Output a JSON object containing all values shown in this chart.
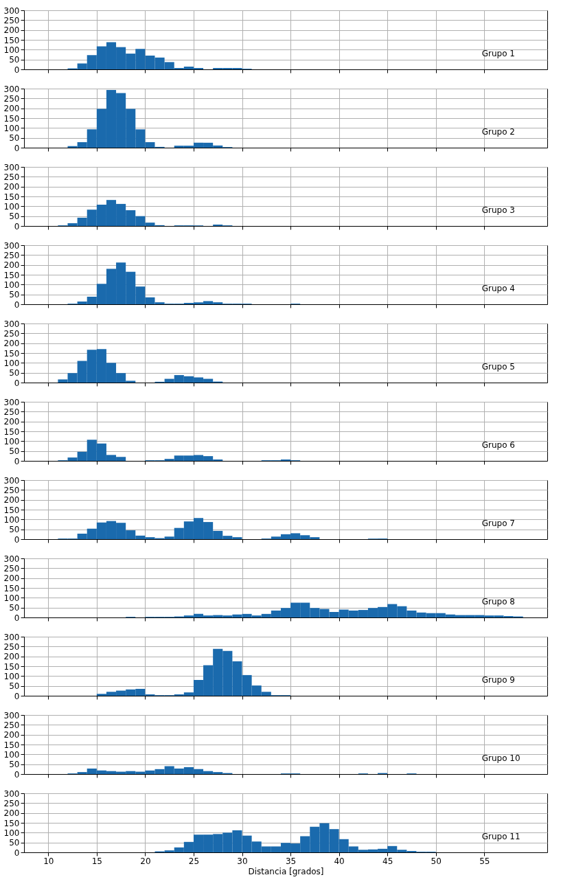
{
  "chart_data": [
    {
      "type": "histogram",
      "bins": [
        12,
        13,
        14,
        15,
        16,
        17,
        18,
        19,
        20,
        21,
        22,
        23,
        24,
        25,
        26,
        27,
        28,
        29,
        30,
        31
      ],
      "values": [
        5,
        30,
        72,
        117,
        138,
        113,
        80,
        104,
        70,
        60,
        37,
        7,
        14,
        7,
        0,
        7,
        7,
        7,
        3
      ],
      "color": "#1a6aad",
      "xlim": [
        7.5,
        61.5
      ],
      "xticks": [
        10,
        15,
        20,
        25,
        30,
        35,
        40,
        45,
        50,
        55
      ],
      "ylim": [
        0,
        300
      ],
      "yticks": [
        0,
        50,
        100,
        150,
        200,
        250,
        300
      ],
      "grid": true,
      "tick_labels": "y",
      "annotations": [
        "Grupo 1"
      ]
    },
    {
      "type": "histogram",
      "bins": [
        12,
        13,
        14,
        15,
        16,
        17,
        18,
        19,
        20,
        21,
        22,
        23,
        24,
        25,
        26,
        27,
        28,
        29
      ],
      "values": [
        8,
        28,
        93,
        197,
        293,
        277,
        197,
        93,
        28,
        4,
        0,
        10,
        10,
        25,
        25,
        11,
        3
      ],
      "color": "#1a6aad",
      "xlim": [
        7.5,
        61.5
      ],
      "xticks": [
        10,
        15,
        20,
        25,
        30,
        35,
        40,
        45,
        50,
        55
      ],
      "ylim": [
        0,
        300
      ],
      "yticks": [
        0,
        50,
        100,
        150,
        200,
        250,
        300
      ],
      "grid": true,
      "tick_labels": "y",
      "annotations": [
        "Grupo 2"
      ]
    },
    {
      "type": "histogram",
      "bins": [
        11,
        12,
        13,
        14,
        15,
        16,
        17,
        18,
        19,
        20,
        21,
        22,
        23,
        24,
        25,
        26,
        27,
        28,
        29
      ],
      "values": [
        3,
        14,
        42,
        83,
        108,
        132,
        112,
        80,
        50,
        17,
        4,
        0,
        3,
        3,
        3,
        0,
        7,
        3
      ],
      "color": "#1a6aad",
      "xlim": [
        7.5,
        61.5
      ],
      "xticks": [
        10,
        15,
        20,
        25,
        30,
        35,
        40,
        45,
        50,
        55
      ],
      "ylim": [
        0,
        300
      ],
      "yticks": [
        0,
        50,
        100,
        150,
        200,
        250,
        300
      ],
      "grid": true,
      "tick_labels": "y",
      "annotations": [
        "Grupo 3"
      ]
    },
    {
      "type": "histogram",
      "bins": [
        12,
        13,
        14,
        15,
        16,
        17,
        18,
        19,
        20,
        21,
        22,
        23,
        24,
        25,
        26,
        27,
        28,
        29,
        30,
        31,
        32,
        33,
        34,
        35,
        36
      ],
      "values": [
        3,
        14,
        38,
        104,
        180,
        212,
        165,
        90,
        35,
        10,
        3,
        3,
        7,
        10,
        16,
        10,
        3,
        3,
        3,
        0,
        0,
        0,
        0,
        3
      ],
      "color": "#1a6aad",
      "xlim": [
        7.5,
        61.5
      ],
      "xticks": [
        10,
        15,
        20,
        25,
        30,
        35,
        40,
        45,
        50,
        55
      ],
      "ylim": [
        0,
        300
      ],
      "yticks": [
        0,
        50,
        100,
        150,
        200,
        250,
        300
      ],
      "grid": true,
      "tick_labels": "y",
      "annotations": [
        "Grupo 4"
      ]
    },
    {
      "type": "histogram",
      "bins": [
        11,
        12,
        13,
        14,
        15,
        16,
        17,
        18,
        19,
        20,
        21,
        22,
        23,
        24,
        25,
        26,
        27,
        28
      ],
      "values": [
        16,
        48,
        110,
        167,
        170,
        100,
        48,
        9,
        0,
        0,
        4,
        19,
        38,
        32,
        26,
        19,
        5
      ],
      "color": "#1a6aad",
      "xlim": [
        7.5,
        61.5
      ],
      "xticks": [
        10,
        15,
        20,
        25,
        30,
        35,
        40,
        45,
        50,
        55
      ],
      "ylim": [
        0,
        300
      ],
      "yticks": [
        0,
        50,
        100,
        150,
        200,
        250,
        300
      ],
      "grid": true,
      "tick_labels": "y",
      "annotations": [
        "Grupo 5"
      ]
    },
    {
      "type": "histogram",
      "bins": [
        11,
        12,
        13,
        14,
        15,
        16,
        17,
        18,
        19,
        20,
        21,
        22,
        23,
        24,
        25,
        26,
        27,
        28,
        29,
        30,
        31,
        32,
        33,
        34,
        35,
        36
      ],
      "values": [
        3,
        17,
        46,
        107,
        88,
        30,
        20,
        0,
        0,
        3,
        3,
        10,
        27,
        27,
        30,
        24,
        7,
        0,
        0,
        0,
        0,
        3,
        3,
        7,
        3
      ],
      "color": "#1a6aad",
      "xlim": [
        7.5,
        61.5
      ],
      "xticks": [
        10,
        15,
        20,
        25,
        30,
        35,
        40,
        45,
        50,
        55
      ],
      "ylim": [
        0,
        300
      ],
      "yticks": [
        0,
        50,
        100,
        150,
        200,
        250,
        300
      ],
      "grid": true,
      "tick_labels": "y",
      "annotations": [
        "Grupo 6"
      ]
    },
    {
      "type": "histogram",
      "bins": [
        11,
        12,
        13,
        14,
        15,
        16,
        17,
        18,
        19,
        20,
        21,
        22,
        23,
        24,
        25,
        26,
        27,
        28,
        29,
        30,
        31,
        32,
        33,
        34,
        35,
        36,
        37,
        38,
        39,
        40,
        41,
        42,
        43,
        44,
        45
      ],
      "values": [
        3,
        3,
        28,
        53,
        85,
        92,
        83,
        45,
        18,
        10,
        5,
        13,
        57,
        90,
        107,
        87,
        42,
        17,
        10,
        0,
        0,
        3,
        13,
        25,
        30,
        20,
        10,
        0,
        0,
        0,
        0,
        0,
        3,
        3
      ],
      "color": "#1a6aad",
      "xlim": [
        7.5,
        61.5
      ],
      "xticks": [
        10,
        15,
        20,
        25,
        30,
        35,
        40,
        45,
        50,
        55
      ],
      "ylim": [
        0,
        300
      ],
      "yticks": [
        0,
        50,
        100,
        150,
        200,
        250,
        300
      ],
      "grid": true,
      "tick_labels": "y",
      "annotations": [
        "Grupo 7"
      ]
    },
    {
      "type": "histogram",
      "bins": [
        18,
        19,
        20,
        21,
        22,
        23,
        24,
        25,
        26,
        27,
        28,
        29,
        30,
        31,
        32,
        33,
        34,
        35,
        36,
        37,
        38,
        39,
        40,
        41,
        42,
        43,
        44,
        45,
        46,
        47,
        48,
        49,
        50,
        51,
        52,
        53,
        54,
        55,
        56,
        57,
        58,
        59
      ],
      "values": [
        3,
        0,
        3,
        3,
        3,
        5,
        10,
        18,
        10,
        12,
        10,
        15,
        18,
        10,
        18,
        35,
        48,
        75,
        75,
        48,
        43,
        28,
        40,
        35,
        38,
        48,
        53,
        68,
        57,
        35,
        25,
        22,
        22,
        15,
        12,
        12,
        12,
        10,
        10,
        7,
        5
      ],
      "color": "#1a6aad",
      "xlim": [
        7.5,
        61.5
      ],
      "xticks": [
        10,
        15,
        20,
        25,
        30,
        35,
        40,
        45,
        50,
        55
      ],
      "ylim": [
        0,
        300
      ],
      "yticks": [
        0,
        50,
        100,
        150,
        200,
        250,
        300
      ],
      "grid": true,
      "tick_labels": "y",
      "annotations": [
        "Grupo 8"
      ]
    },
    {
      "type": "histogram",
      "bins": [
        15,
        16,
        17,
        18,
        19,
        20,
        21,
        22,
        23,
        24,
        25,
        26,
        27,
        28,
        29,
        30,
        31,
        32,
        33,
        34,
        35
      ],
      "values": [
        10,
        20,
        26,
        32,
        35,
        7,
        3,
        3,
        7,
        17,
        80,
        155,
        238,
        228,
        175,
        105,
        52,
        20,
        3,
        3
      ],
      "color": "#1a6aad",
      "xlim": [
        7.5,
        61.5
      ],
      "xticks": [
        10,
        15,
        20,
        25,
        30,
        35,
        40,
        45,
        50,
        55
      ],
      "ylim": [
        0,
        300
      ],
      "yticks": [
        0,
        50,
        100,
        150,
        200,
        250,
        300
      ],
      "grid": true,
      "tick_labels": "y",
      "annotations": [
        "Grupo 9"
      ]
    },
    {
      "type": "histogram",
      "bins": [
        12,
        13,
        14,
        15,
        16,
        17,
        18,
        19,
        20,
        21,
        22,
        23,
        24,
        25,
        26,
        27,
        28,
        29,
        30,
        31,
        32,
        33,
        34,
        35,
        36,
        37,
        38,
        39,
        40,
        41,
        42,
        43,
        44,
        45,
        46,
        47,
        48
      ],
      "values": [
        3,
        10,
        28,
        18,
        15,
        12,
        15,
        12,
        18,
        25,
        40,
        28,
        35,
        25,
        15,
        10,
        5,
        0,
        0,
        0,
        0,
        0,
        3,
        3,
        0,
        0,
        0,
        0,
        0,
        0,
        3,
        0,
        5,
        0,
        0,
        3
      ],
      "color": "#1a6aad",
      "xlim": [
        7.5,
        61.5
      ],
      "xticks": [
        10,
        15,
        20,
        25,
        30,
        35,
        40,
        45,
        50,
        55
      ],
      "ylim": [
        0,
        300
      ],
      "yticks": [
        0,
        50,
        100,
        150,
        200,
        250,
        300
      ],
      "grid": true,
      "tick_labels": "y",
      "annotations": [
        "Grupo 10"
      ]
    },
    {
      "type": "histogram",
      "bins": [
        21,
        22,
        23,
        24,
        25,
        26,
        27,
        28,
        29,
        30,
        31,
        32,
        33,
        34,
        35,
        36,
        37,
        38,
        39,
        40,
        41,
        42,
        43,
        44,
        45,
        46,
        47,
        48,
        49,
        50
      ],
      "values": [
        5,
        10,
        25,
        53,
        90,
        90,
        93,
        100,
        112,
        85,
        55,
        30,
        30,
        48,
        45,
        82,
        130,
        148,
        118,
        67,
        30,
        13,
        15,
        18,
        32,
        13,
        7,
        3,
        3
      ],
      "color": "#1a6aad",
      "xlim": [
        7.5,
        61.5
      ],
      "xticks": [
        10,
        15,
        20,
        25,
        30,
        35,
        40,
        45,
        50,
        55
      ],
      "ylim": [
        0,
        300
      ],
      "yticks": [
        0,
        50,
        100,
        150,
        200,
        250,
        300
      ],
      "grid": true,
      "xlabel": "Distancia [grados]",
      "annotations": [
        "Grupo 11"
      ]
    }
  ]
}
